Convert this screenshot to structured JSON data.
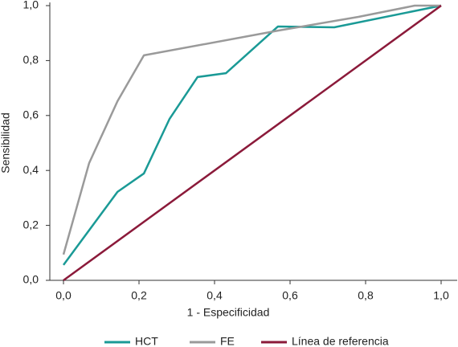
{
  "chart_data": {
    "type": "line",
    "xlabel": "1 - Especificidad",
    "ylabel": "Sensibilidad",
    "series": [
      {
        "name": "HCT",
        "color": "#1a9a96",
        "x": [
          0,
          0.143,
          0.213,
          0.281,
          0.355,
          0.43,
          0.568,
          0.717,
          1.0
        ],
        "values": [
          0.056,
          0.322,
          0.389,
          0.588,
          0.74,
          0.754,
          0.924,
          0.921,
          1.0
        ]
      },
      {
        "name": "FE",
        "color": "#9a9a9a",
        "x": [
          0,
          0.068,
          0.143,
          0.213,
          0.568,
          0.781,
          0.93,
          1.0
        ],
        "values": [
          0.094,
          0.427,
          0.652,
          0.819,
          0.909,
          0.959,
          1.0,
          1.0
        ]
      },
      {
        "name": "Línea de referencia",
        "color": "#8b1a3a",
        "x": [
          0,
          1.0
        ],
        "values": [
          0,
          1.0
        ]
      }
    ],
    "xlim": [
      0,
      1.0
    ],
    "ylim": [
      0,
      1.0
    ],
    "xticks": [
      {
        "value": 0,
        "label": "0,0"
      },
      {
        "value": 0.2,
        "label": "0,2"
      },
      {
        "value": 0.4,
        "label": "0,4"
      },
      {
        "value": 0.6,
        "label": "0,6"
      },
      {
        "value": 0.8,
        "label": "0,8"
      },
      {
        "value": 1.0,
        "label": "1,0"
      }
    ],
    "yticks": [
      {
        "value": 0,
        "label": "0,0"
      },
      {
        "value": 0.2,
        "label": "0,2"
      },
      {
        "value": 0.4,
        "label": "0,4"
      },
      {
        "value": 0.6,
        "label": "0,6"
      },
      {
        "value": 0.8,
        "label": "0,8"
      },
      {
        "value": 1.0,
        "label": "1,0"
      }
    ],
    "legend": "bottom"
  }
}
